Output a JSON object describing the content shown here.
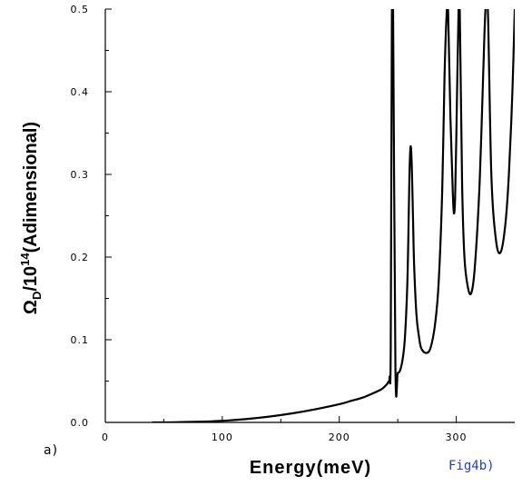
{
  "chart_data": {
    "type": "line",
    "xlabel": "Energy(meV)",
    "ylabel": {
      "symbol": "Ω",
      "symbol_sub": "D",
      "middle": "/10",
      "power": "14",
      "tail": "(Adimensional)"
    },
    "xlim": [
      0,
      350
    ],
    "ylim": [
      0,
      0.5
    ],
    "x_ticks": [
      "0",
      "100",
      "200",
      "300"
    ],
    "y_ticks": [
      "0.0",
      "0.1",
      "0.2",
      "0.3",
      "0.4",
      "0.5"
    ],
    "grid": false,
    "series": [
      {
        "color": "#000000",
        "x": [
          40,
          60,
          80,
          100,
          120,
          140,
          160,
          180,
          200,
          210,
          220,
          230,
          236,
          240,
          242,
          243,
          244,
          245,
          246,
          248,
          250,
          252,
          254,
          256,
          258,
          259,
          260,
          261,
          262,
          263,
          264,
          266,
          268,
          270,
          274,
          278,
          282,
          285,
          288,
          290,
          292,
          293,
          295,
          297,
          298,
          299,
          300,
          302,
          303,
          305,
          307,
          310,
          313,
          316,
          320,
          323,
          325,
          327,
          330,
          334,
          338,
          342,
          345,
          348,
          350
        ],
        "y": [
          0.0,
          0.0002,
          0.0008,
          0.002,
          0.004,
          0.007,
          0.011,
          0.016,
          0.022,
          0.026,
          0.03,
          0.036,
          0.04,
          0.045,
          0.049,
          0.055,
          0.09,
          0.5,
          0.5,
          0.065,
          0.06,
          0.063,
          0.075,
          0.1,
          0.16,
          0.22,
          0.3,
          0.334,
          0.31,
          0.25,
          0.19,
          0.13,
          0.105,
          0.09,
          0.084,
          0.09,
          0.12,
          0.17,
          0.28,
          0.42,
          0.5,
          0.5,
          0.37,
          0.28,
          0.253,
          0.27,
          0.34,
          0.5,
          0.5,
          0.29,
          0.2,
          0.163,
          0.157,
          0.19,
          0.29,
          0.42,
          0.5,
          0.5,
          0.3,
          0.22,
          0.206,
          0.24,
          0.3,
          0.4,
          0.5
        ]
      }
    ],
    "annotations": [
      "a)",
      "Fig4b)"
    ],
    "annotation_colors": [
      "#000000",
      "#1f3fd0"
    ]
  }
}
